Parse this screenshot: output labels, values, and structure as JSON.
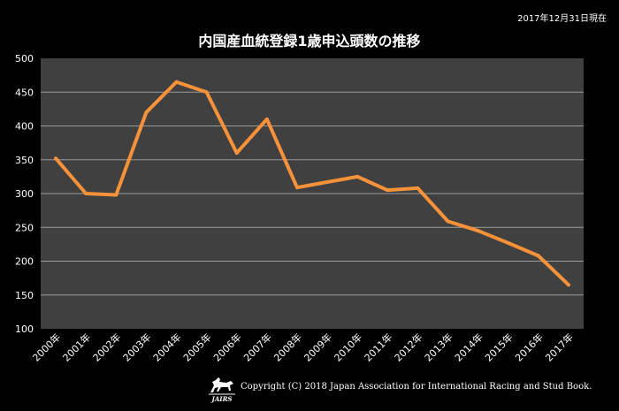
{
  "header": {
    "date_note": "2017年12月31日現在",
    "title": "内国産血統登録1歳申込頭数の推移"
  },
  "footer": {
    "logo_text": "JAIRS",
    "copyright": "Copyright (C) 2018 Japan Association for International Racing and Stud Book."
  },
  "colors": {
    "background": "#000000",
    "plot_area": "#404040",
    "gridline": "#9a9a9a",
    "line": "#f7923a",
    "text": "#ffffff"
  },
  "chart_data": {
    "type": "line",
    "title": "内国産血統登録1歳申込頭数の推移",
    "xlabel": "",
    "ylabel": "",
    "categories": [
      "2000年",
      "2001年",
      "2002年",
      "2003年",
      "2004年",
      "2005年",
      "2006年",
      "2007年",
      "2008年",
      "2009年",
      "2010年",
      "2011年",
      "2012年",
      "2013年",
      "2014年",
      "2015年",
      "2016年",
      "2017年"
    ],
    "series": [
      {
        "values": [
          352,
          300,
          298,
          420,
          465,
          450,
          360,
          410,
          309,
          317,
          325,
          305,
          308,
          259,
          245,
          227,
          208,
          165
        ]
      }
    ],
    "ylim": [
      100,
      500
    ],
    "yticks": [
      100,
      150,
      200,
      250,
      300,
      350,
      400,
      450,
      500
    ],
    "grid": true,
    "legend": "none"
  }
}
